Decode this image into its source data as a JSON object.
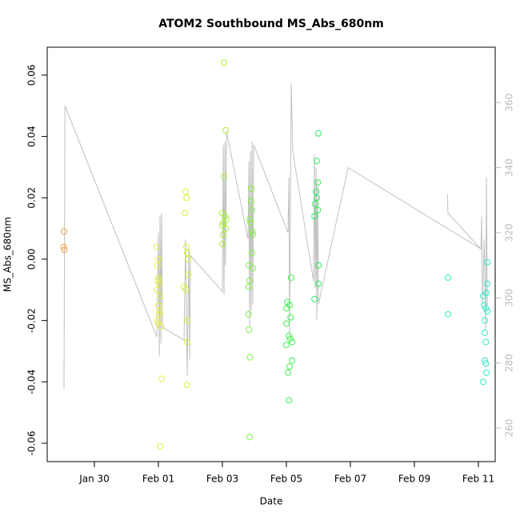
{
  "chart_data": {
    "type": "scatter",
    "title": "ATOM2 Southbound MS_Abs_680nm",
    "x_label": "Date",
    "y_label": "MS_Abs_680nm",
    "xlim": [
      28.525,
      42.525
    ],
    "xticks": [
      {
        "value": 30,
        "label": "Jan 30"
      },
      {
        "value": 32,
        "label": "Feb 01"
      },
      {
        "value": 34,
        "label": "Feb 03"
      },
      {
        "value": 36,
        "label": "Feb 05"
      },
      {
        "value": 38,
        "label": "Feb 07"
      },
      {
        "value": 40,
        "label": "Feb 09"
      },
      {
        "value": 42,
        "label": "Feb 11"
      }
    ],
    "ylim": [
      -0.066,
      0.0691
    ],
    "yticks": [
      -0.06,
      -0.04,
      -0.02,
      {
        "value": 0,
        "label": "0.00"
      },
      0.02,
      0.04,
      0.06
    ],
    "y2lim": [
      249.7,
      377
    ],
    "y2ticks": [
      260,
      280,
      300,
      320,
      340,
      360
    ],
    "series": [
      {
        "color": "#f0a040",
        "x": [
          29.05,
          29.04,
          29.06
        ],
        "values": [
          0.009,
          0.004,
          0.003
        ]
      },
      {
        "color": "#e6f040",
        "x": [
          31.95,
          31.97,
          32.0,
          31.98,
          32.02,
          31.96,
          32.05,
          32.0,
          32.03,
          31.99,
          32.08,
          32.1,
          32.06,
          32.01,
          32.04,
          31.97
        ],
        "values": [
          0.004,
          -0.002,
          -0.006,
          -0.007,
          -0.008,
          -0.01,
          -0.012,
          -0.015,
          -0.018,
          -0.021,
          -0.022,
          -0.039,
          -0.061,
          0.0,
          -0.017,
          -0.02
        ]
      },
      {
        "color": "#d8f038",
        "x": [
          32.85,
          32.88,
          32.83,
          32.87,
          32.9,
          32.92,
          32.93,
          32.8,
          32.86,
          32.91,
          32.9,
          32.89
        ],
        "values": [
          0.022,
          0.02,
          0.015,
          0.004,
          0.002,
          0.0,
          -0.005,
          -0.009,
          -0.01,
          -0.02,
          -0.027,
          -0.041
        ]
      },
      {
        "color": "#a8f038",
        "x": [
          34.05,
          34.1,
          34.05,
          34.0,
          34.08,
          34.12,
          34.03,
          34.0,
          34.1,
          34.02,
          34.0
        ],
        "values": [
          0.064,
          0.042,
          0.027,
          0.015,
          0.014,
          0.013,
          0.012,
          0.011,
          0.01,
          0.008,
          0.005
        ]
      },
      {
        "color": "#80f040",
        "x": [
          34.9,
          34.9,
          34.92,
          34.85,
          34.88,
          34.93,
          34.95,
          34.92,
          34.83,
          34.95,
          34.85,
          34.82,
          34.82,
          34.83,
          34.86,
          34.85
        ],
        "values": [
          0.023,
          0.019,
          0.016,
          0.013,
          0.012,
          0.009,
          0.008,
          0.002,
          -0.002,
          -0.003,
          -0.007,
          -0.009,
          -0.018,
          -0.023,
          -0.032,
          -0.058
        ]
      },
      {
        "color": "#40f050",
        "x": [
          36.15,
          36.03,
          36.1,
          36.0,
          36.13,
          36.0,
          36.08,
          36.12,
          36.18,
          36.0,
          36.18,
          36.1,
          36.05,
          36.08
        ],
        "values": [
          -0.006,
          -0.014,
          -0.015,
          -0.016,
          -0.019,
          -0.021,
          -0.025,
          -0.026,
          -0.027,
          -0.028,
          -0.033,
          -0.035,
          -0.037,
          -0.046
        ]
      },
      {
        "color": "#30e860",
        "x": [
          37.0,
          36.95,
          36.98,
          36.93,
          36.95,
          36.9,
          36.98,
          36.88,
          37.0,
          37.0,
          36.88
        ],
        "values": [
          0.041,
          0.032,
          0.025,
          0.022,
          0.02,
          0.018,
          0.016,
          0.014,
          -0.002,
          -0.008,
          -0.013
        ]
      },
      {
        "color": "#30f0a8",
        "x": [
          41.05,
          41.05
        ],
        "values": [
          -0.006,
          -0.018
        ]
      },
      {
        "color": "#30e8c8",
        "x": [
          42.28,
          42.28,
          42.25,
          42.15,
          42.18,
          42.23,
          42.28,
          42.2,
          42.2,
          42.23,
          42.2,
          42.23,
          42.25,
          42.15
        ],
        "values": [
          -0.001,
          -0.008,
          -0.011,
          -0.012,
          -0.015,
          -0.016,
          -0.017,
          -0.02,
          -0.024,
          -0.027,
          -0.033,
          -0.034,
          -0.037,
          -0.04
        ]
      },
      {
        "type": "line",
        "axis": "y2",
        "color": "#c0c0c0",
        "x": [
          29.05,
          29.08,
          31.95,
          32.0,
          32.03,
          32.05,
          32.08,
          32.1,
          32.13,
          32.8,
          32.85,
          32.9,
          32.95,
          32.98,
          33.0,
          34.0,
          34.03,
          34.05,
          34.08,
          34.1,
          34.13,
          34.8,
          34.83,
          34.85,
          34.88,
          34.9,
          34.93,
          34.95,
          34.98,
          36.05,
          36.08,
          36.1,
          36.13,
          36.15,
          36.2,
          36.85,
          36.88,
          36.9,
          36.93,
          36.95,
          36.98,
          37.0,
          37.93,
          42.08,
          42.1,
          42.13,
          42.18,
          42.23,
          42.25,
          42.28,
          null,
          41.03,
          41.05,
          42.08
        ],
        "values": [
          272,
          359,
          288,
          320,
          282,
          325,
          286,
          326,
          291,
          287,
          318,
          276,
          315,
          281,
          313,
          302,
          347,
          301,
          348,
          310,
          351,
          318,
          342,
          291,
          345,
          296,
          348,
          298,
          347,
          320,
          337,
          288,
          335,
          366,
          345,
          305,
          344,
          303,
          340,
          293,
          336,
          298,
          340,
          315,
          325,
          298,
          318,
          290,
          337,
          298,
          null,
          332,
          326,
          315
        ]
      }
    ]
  }
}
